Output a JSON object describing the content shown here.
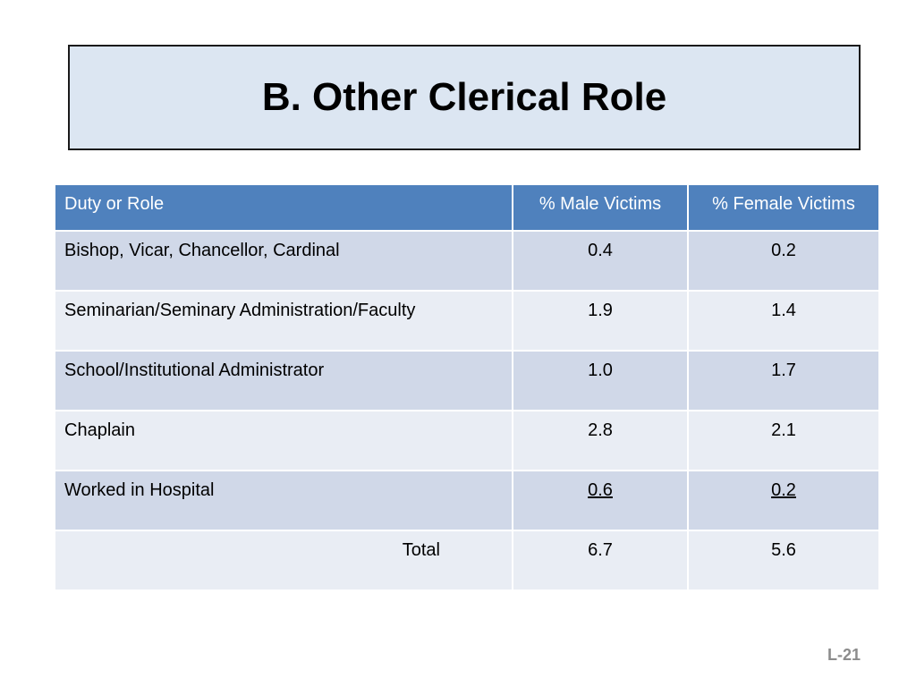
{
  "title": "B.  Other Clerical Role",
  "table": {
    "headers": [
      "Duty or Role",
      "% Male Victims",
      "% Female Victims"
    ],
    "rows": [
      {
        "role": "Bishop, Vicar, Chancellor, Cardinal",
        "male": "0.4",
        "female": "0.2"
      },
      {
        "role": "Seminarian/Seminary Administration/Faculty",
        "male": "1.9",
        "female": "1.4"
      },
      {
        "role": "School/Institutional Administrator",
        "male": "1.0",
        "female": "1.7"
      },
      {
        "role": "Chaplain",
        "male": "2.8",
        "female": "2.1"
      },
      {
        "role": "Worked in Hospital",
        "male": "0.6",
        "female": "0.2"
      }
    ],
    "total": {
      "label": "Total",
      "male": "6.7",
      "female": "5.6"
    }
  },
  "slide_number": "L-21",
  "colors": {
    "header_bg": "#4f81bd",
    "row_odd": "#d0d8e8",
    "row_even": "#e9edf4",
    "title_bg": "#dce6f2"
  }
}
